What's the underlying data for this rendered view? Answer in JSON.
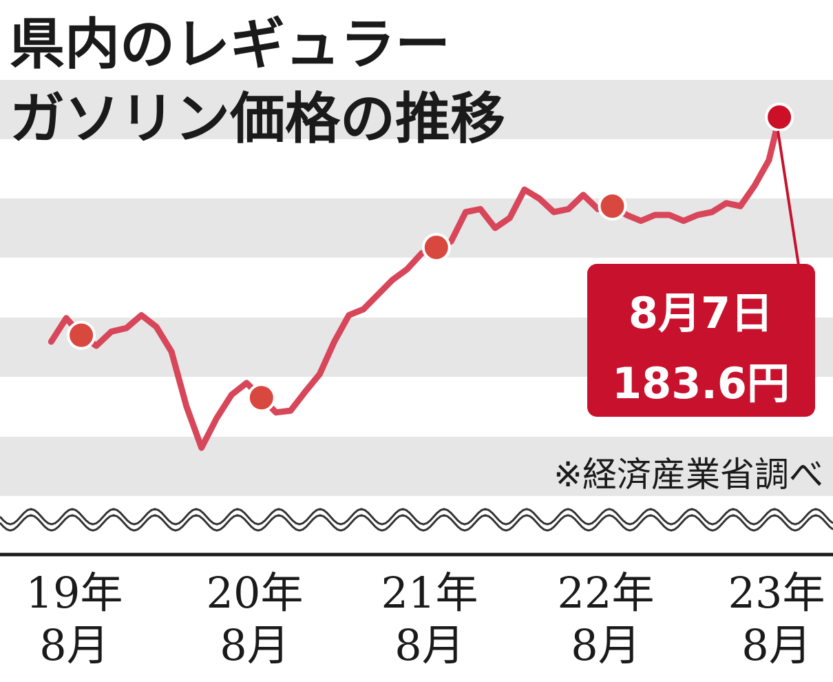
{
  "title_line1": "県内のレギュラー",
  "title_line2": "ガソリン価格の推移",
  "source": "※経済産業省調べ",
  "colors": {
    "line": "#d8465a",
    "marker": "#d9483e",
    "latest_marker": "#cc1028",
    "callout_bg": "#c8122d",
    "band": "#e6e6e6"
  },
  "callout": {
    "date": "8月7日",
    "value": "183.6円"
  },
  "chart_data": {
    "type": "line",
    "x_tick_labels": [
      {
        "year": "19年",
        "month": "8月"
      },
      {
        "year": "20年",
        "month": "8月"
      },
      {
        "year": "21年",
        "month": "8月"
      },
      {
        "year": "22年",
        "month": "8月"
      },
      {
        "year": "23年",
        "month": "8月"
      }
    ],
    "y_axis_break": true,
    "grid": "alternating horizontal bands",
    "x": [
      "2019-06",
      "2019-07",
      "2019-08",
      "2019-09",
      "2019-10",
      "2019-11",
      "2019-12",
      "2020-01",
      "2020-02",
      "2020-03",
      "2020-04",
      "2020-05",
      "2020-06",
      "2020-07",
      "2020-08",
      "2020-09",
      "2020-10",
      "2020-11",
      "2020-12",
      "2021-01",
      "2021-02",
      "2021-03",
      "2021-04",
      "2021-05",
      "2021-06",
      "2021-07",
      "2021-08",
      "2021-09",
      "2021-10",
      "2021-11",
      "2021-12",
      "2022-01",
      "2022-02",
      "2022-03",
      "2022-04",
      "2022-05",
      "2022-06",
      "2022-07",
      "2022-08",
      "2022-09",
      "2022-10",
      "2022-11",
      "2022-12",
      "2023-01",
      "2023-02",
      "2023-03",
      "2023-04",
      "2023-05",
      "2023-06",
      "2023-07",
      "2023-08-07"
    ],
    "values": [
      145.5,
      149.5,
      146.6,
      144.8,
      147.2,
      147.8,
      150.0,
      148.0,
      143.8,
      134.5,
      127.5,
      132.5,
      136.5,
      138.5,
      136.0,
      133.5,
      133.8,
      137.0,
      140.0,
      145.5,
      150.0,
      151.0,
      153.5,
      156.0,
      157.8,
      160.5,
      161.5,
      162.5,
      167.5,
      168.0,
      164.8,
      166.5,
      171.3,
      169.8,
      167.5,
      168.0,
      170.4,
      168.0,
      168.5,
      167.0,
      166.0,
      167.0,
      167.0,
      166.0,
      167.0,
      167.5,
      169.0,
      168.5,
      172.0,
      176.3,
      183.6
    ],
    "highlight_points": [
      {
        "x": "2019-08",
        "y": 146.6
      },
      {
        "x": "2020-08",
        "y": 136.0
      },
      {
        "x": "2021-08",
        "y": 161.5
      },
      {
        "x": "2022-08",
        "y": 168.5
      },
      {
        "x": "2023-08-07",
        "y": 183.6
      }
    ]
  }
}
